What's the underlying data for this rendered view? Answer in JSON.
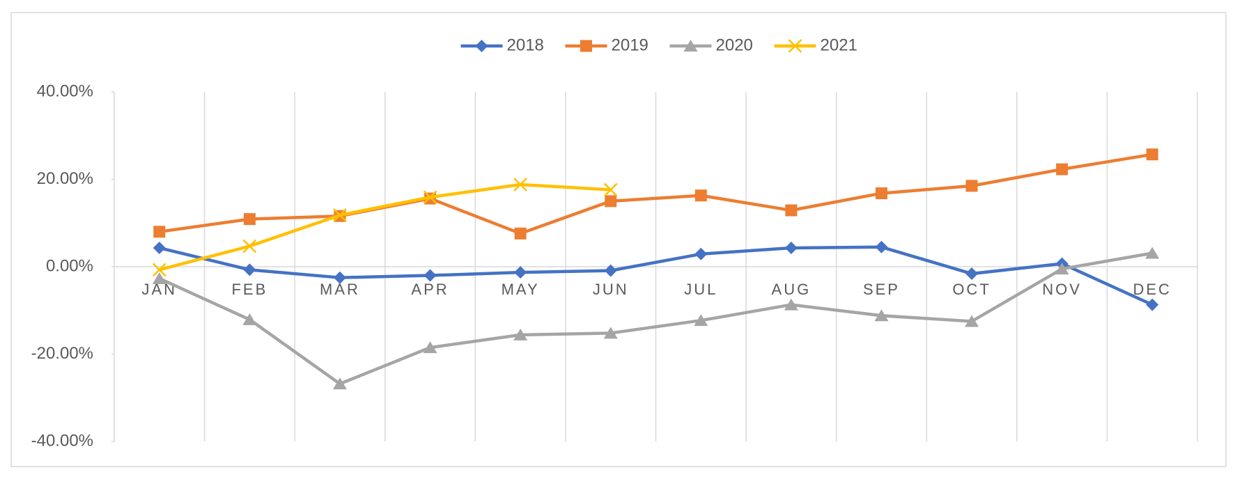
{
  "chart_data": {
    "type": "line",
    "categories": [
      "JAN",
      "FEB",
      "MAR",
      "APR",
      "MAY",
      "JUN",
      "JUL",
      "AUG",
      "SEP",
      "OCT",
      "NOV",
      "DEC"
    ],
    "series": [
      {
        "name": "2018",
        "color": "#4472c4",
        "marker": "diamond",
        "values": [
          4.3,
          -0.7,
          -2.5,
          -2.0,
          -1.3,
          -0.9,
          2.9,
          4.3,
          4.5,
          -1.6,
          0.7,
          -8.7
        ]
      },
      {
        "name": "2019",
        "color": "#ed7d31",
        "marker": "square",
        "values": [
          8.0,
          10.9,
          11.6,
          15.6,
          7.6,
          15.0,
          16.3,
          12.9,
          16.8,
          18.5,
          22.3,
          25.7
        ]
      },
      {
        "name": "2020",
        "color": "#a5a5a5",
        "marker": "triangle",
        "values": [
          -2.7,
          -12.1,
          -26.8,
          -18.5,
          -15.6,
          -15.2,
          -12.3,
          -8.7,
          -11.2,
          -12.5,
          -0.5,
          3.1
        ]
      },
      {
        "name": "2021",
        "color": "#ffc000",
        "marker": "x",
        "values": [
          -0.7,
          4.7,
          11.8,
          15.9,
          18.8,
          17.6,
          null,
          null,
          null,
          null,
          null,
          null
        ]
      }
    ],
    "ylim": [
      -40,
      40
    ],
    "yticks": [
      {
        "value": -40,
        "label": "-40.00%"
      },
      {
        "value": -20,
        "label": "-20.00%"
      },
      {
        "value": 0,
        "label": "0.00%"
      },
      {
        "value": 20,
        "label": "20.00%"
      },
      {
        "value": 40,
        "label": "40.00%"
      }
    ],
    "grid": "x",
    "legend": "top"
  }
}
